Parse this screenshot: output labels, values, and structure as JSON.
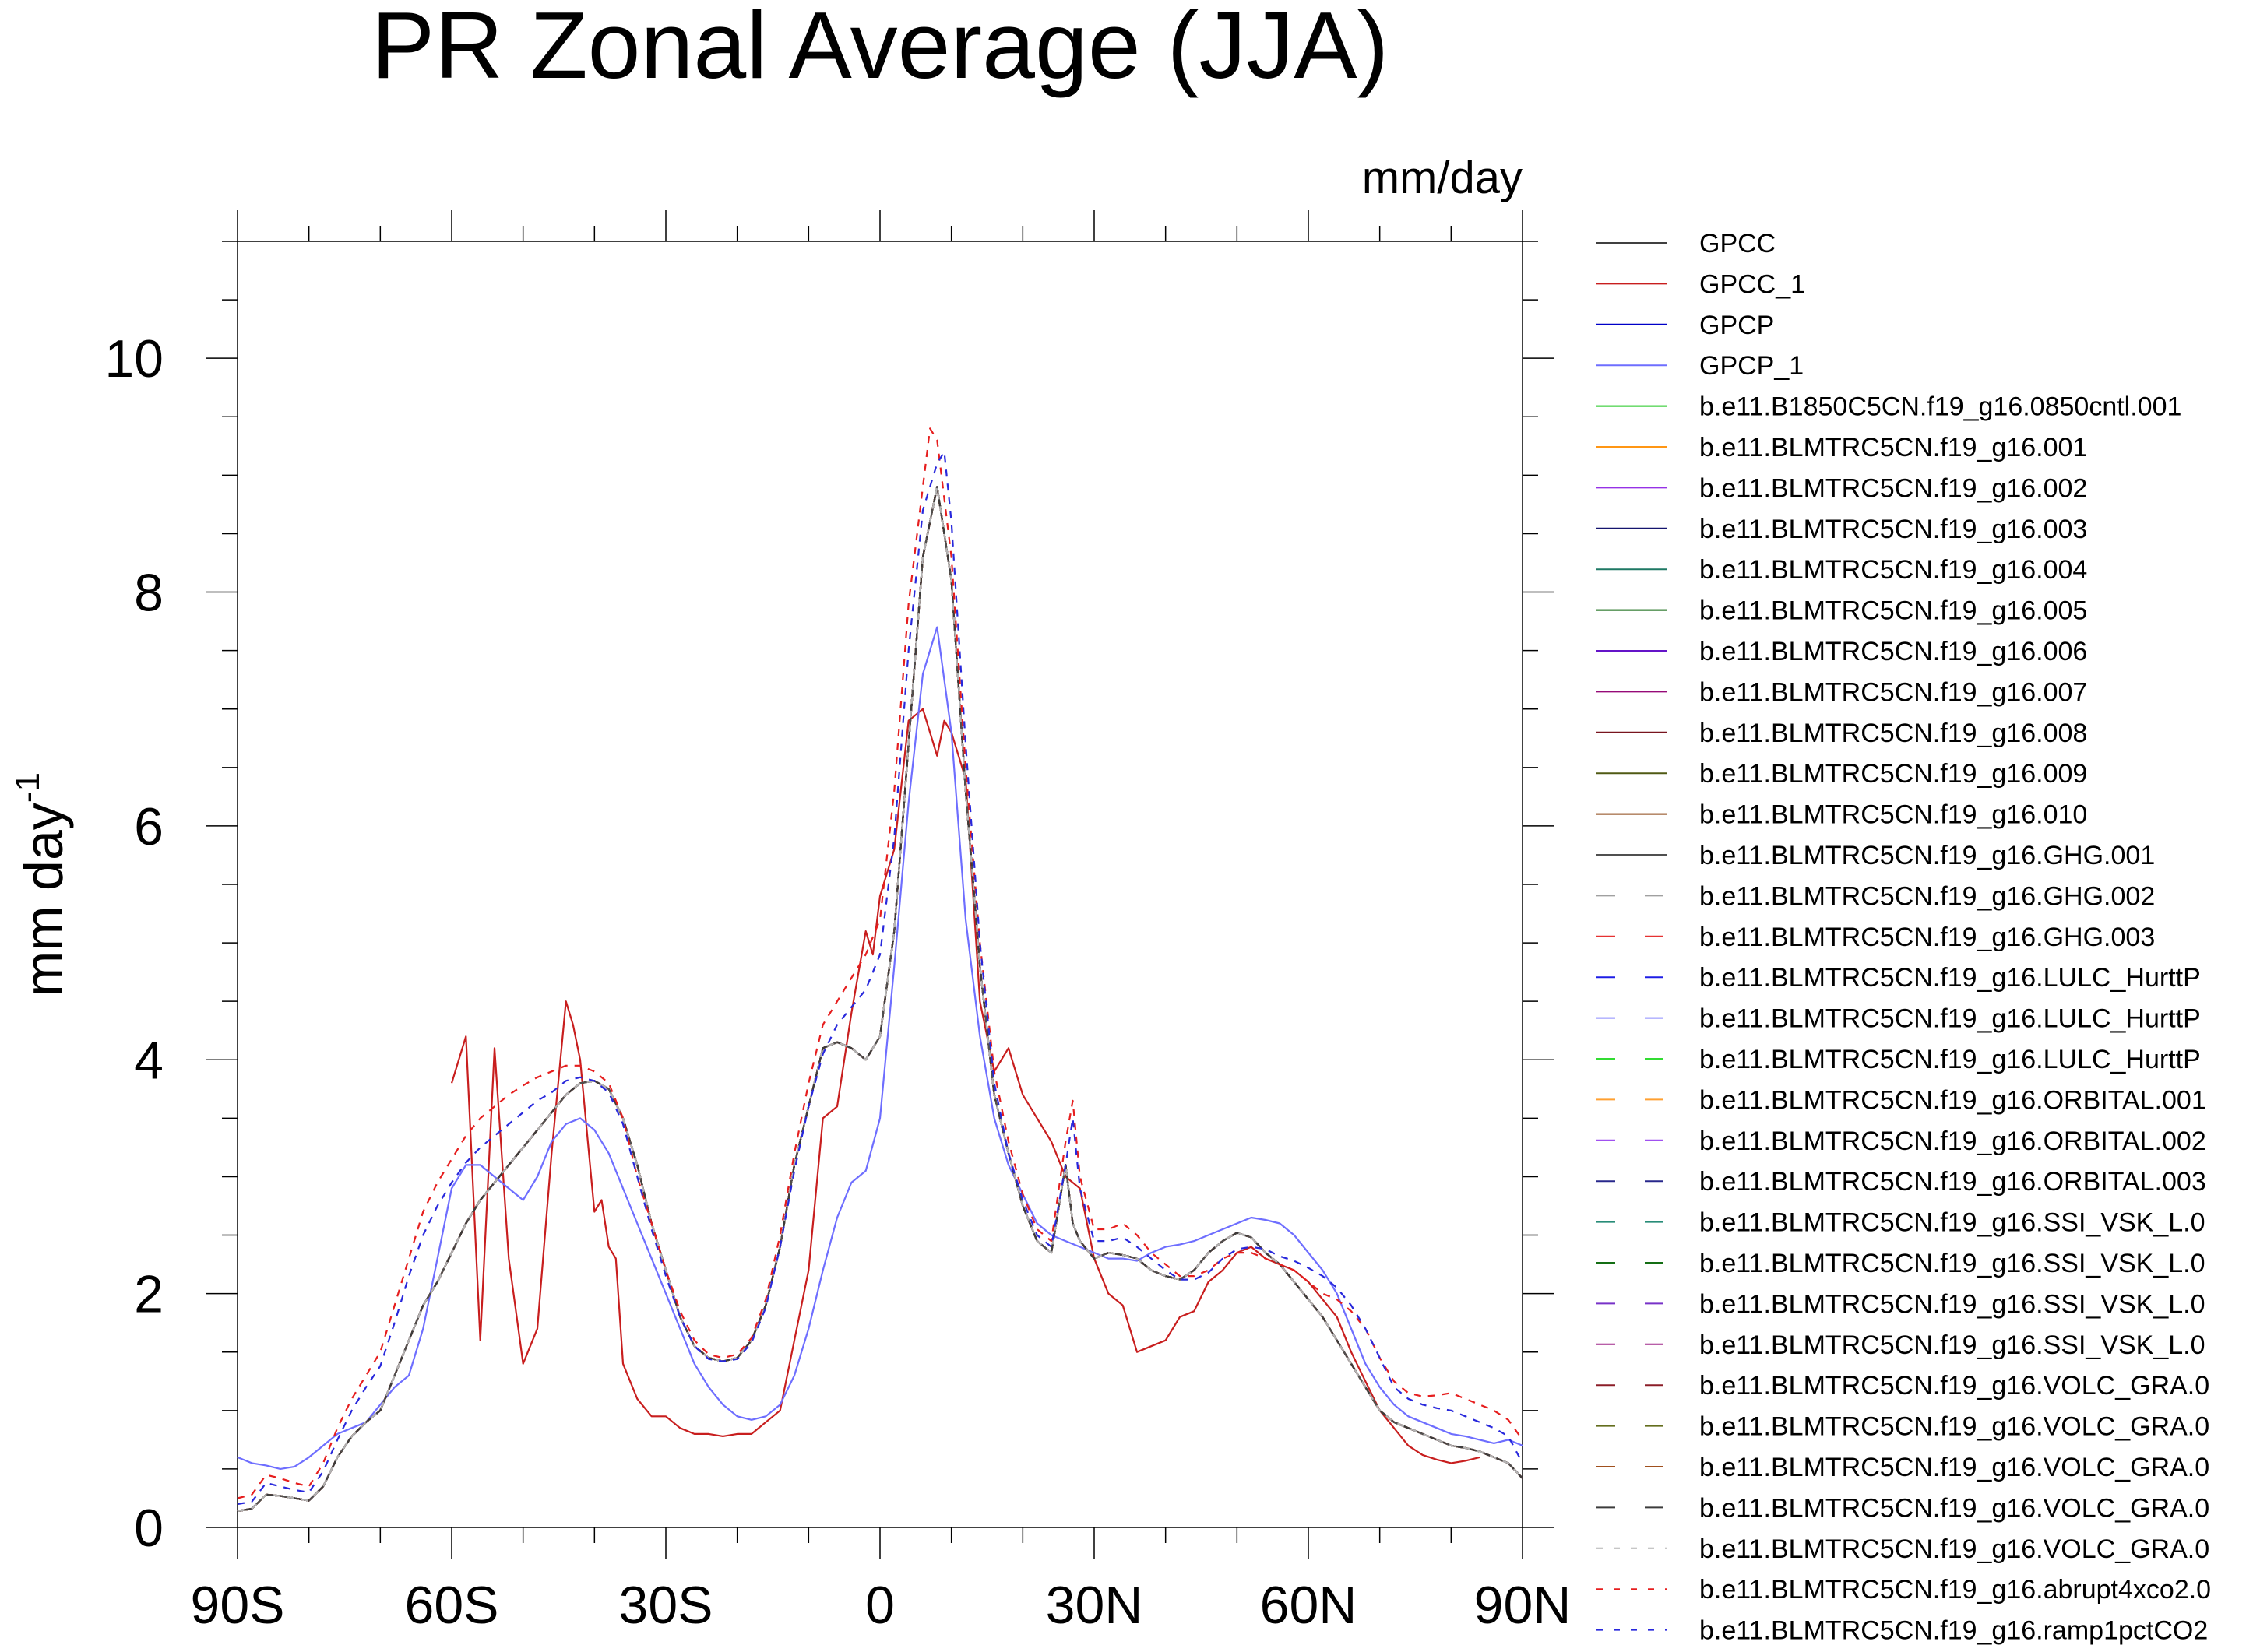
{
  "chart_data": {
    "type": "line",
    "title": "PR Zonal Average (JJA)",
    "units": "mm/day",
    "ylabel": "mm day",
    "ylabel_superscript": "-1",
    "xlabel": "",
    "xlim": [
      -90,
      90
    ],
    "ylim": [
      0,
      11
    ],
    "xticks": [
      {
        "value": -90,
        "label": "90S"
      },
      {
        "value": -60,
        "label": "60S"
      },
      {
        "value": -30,
        "label": "30S"
      },
      {
        "value": 0,
        "label": "0"
      },
      {
        "value": 30,
        "label": "30N"
      },
      {
        "value": 60,
        "label": "60N"
      },
      {
        "value": 90,
        "label": "90N"
      }
    ],
    "yticks": [
      {
        "value": 0,
        "label": "0"
      },
      {
        "value": 2,
        "label": "2"
      },
      {
        "value": 4,
        "label": "4"
      },
      {
        "value": 6,
        "label": "6"
      },
      {
        "value": 8,
        "label": "8"
      },
      {
        "value": 10,
        "label": "10"
      }
    ],
    "model_mean": {
      "x": [
        -90,
        -88,
        -86,
        -84,
        -82,
        -80,
        -78,
        -76,
        -74,
        -72,
        -70,
        -68,
        -66,
        -64,
        -62,
        -60,
        -58,
        -56,
        -54,
        -52,
        -50,
        -48,
        -46,
        -44,
        -42,
        -40,
        -38,
        -36,
        -34,
        -32,
        -30,
        -28,
        -26,
        -24,
        -22,
        -20,
        -18,
        -16,
        -14,
        -12,
        -10,
        -8,
        -6,
        -4,
        -2,
        0,
        2,
        4,
        6,
        8,
        10,
        12,
        14,
        16,
        18,
        20,
        22,
        24,
        26,
        27,
        28,
        30,
        32,
        34,
        36,
        38,
        40,
        42,
        44,
        46,
        48,
        50,
        52,
        54,
        56,
        58,
        60,
        62,
        64,
        66,
        68,
        70,
        72,
        74,
        76,
        78,
        80,
        82,
        84,
        86,
        88,
        90
      ],
      "y": [
        0.14,
        0.16,
        0.28,
        0.27,
        0.25,
        0.23,
        0.35,
        0.6,
        0.78,
        0.9,
        1.0,
        1.3,
        1.6,
        1.9,
        2.1,
        2.35,
        2.6,
        2.8,
        2.95,
        3.1,
        3.25,
        3.4,
        3.55,
        3.7,
        3.8,
        3.82,
        3.75,
        3.5,
        3.1,
        2.6,
        2.2,
        1.8,
        1.55,
        1.45,
        1.42,
        1.45,
        1.6,
        1.9,
        2.4,
        3.1,
        3.6,
        4.1,
        4.15,
        4.1,
        4.0,
        4.2,
        5.1,
        6.7,
        8.3,
        8.9,
        8.1,
        6.3,
        4.8,
        3.7,
        3.2,
        2.75,
        2.45,
        2.35,
        3.1,
        2.6,
        2.45,
        2.3,
        2.35,
        2.33,
        2.3,
        2.2,
        2.15,
        2.12,
        2.2,
        2.35,
        2.45,
        2.52,
        2.48,
        2.35,
        2.25,
        2.1,
        1.95,
        1.8,
        1.6,
        1.4,
        1.2,
        1.0,
        0.9,
        0.85,
        0.8,
        0.75,
        0.7,
        0.68,
        0.65,
        0.6,
        0.55,
        0.42
      ]
    },
    "series": [
      {
        "name": "GPCC",
        "color": "#404040",
        "dash": "solid",
        "source": "model_mean"
      },
      {
        "name": "GPCC_1",
        "color": "#c81e1e",
        "dash": "solid",
        "x": [
          -60,
          -58,
          -56,
          -54,
          -52,
          -50,
          -48,
          -46,
          -44,
          -43,
          -42,
          -40,
          -39,
          -38,
          -37,
          -36,
          -34,
          -32,
          -30,
          -28,
          -26,
          -24,
          -22,
          -20,
          -18,
          -16,
          -14,
          -12,
          -10,
          -8,
          -6,
          -4,
          -2,
          -1,
          0,
          2,
          4,
          6,
          8,
          9,
          10,
          12,
          14,
          16,
          18,
          20,
          22,
          24,
          26,
          28,
          30,
          32,
          34,
          36,
          38,
          40,
          42,
          44,
          46,
          48,
          50,
          52,
          54,
          56,
          58,
          60,
          62,
          64,
          66,
          68,
          70,
          72,
          74,
          76,
          78,
          80,
          82,
          84
        ],
        "y": [
          3.8,
          4.2,
          1.6,
          4.1,
          2.3,
          1.4,
          1.7,
          3.2,
          4.5,
          4.3,
          4.0,
          2.7,
          2.8,
          2.4,
          2.3,
          1.4,
          1.1,
          0.95,
          0.95,
          0.85,
          0.8,
          0.8,
          0.78,
          0.8,
          0.8,
          0.9,
          1.0,
          1.6,
          2.2,
          3.5,
          3.6,
          4.4,
          5.1,
          4.9,
          5.4,
          5.8,
          6.9,
          7.0,
          6.6,
          6.9,
          6.8,
          6.4,
          4.5,
          3.9,
          4.1,
          3.7,
          3.5,
          3.3,
          3.0,
          2.9,
          2.3,
          2.0,
          1.9,
          1.5,
          1.55,
          1.6,
          1.8,
          1.85,
          2.1,
          2.2,
          2.35,
          2.4,
          2.3,
          2.25,
          2.2,
          2.1,
          1.95,
          1.8,
          1.5,
          1.25,
          1.0,
          0.85,
          0.7,
          0.62,
          0.58,
          0.55,
          0.57,
          0.6
        ]
      },
      {
        "name": "GPCP",
        "color": "#0000c8",
        "dash": "solid",
        "source": "model_mean"
      },
      {
        "name": "GPCP_1",
        "color": "#6e6eff",
        "dash": "solid",
        "x": [
          -90,
          -88,
          -86,
          -84,
          -82,
          -80,
          -78,
          -76,
          -74,
          -72,
          -70,
          -68,
          -66,
          -64,
          -62,
          -60,
          -58,
          -56,
          -54,
          -52,
          -50,
          -48,
          -46,
          -44,
          -42,
          -40,
          -38,
          -36,
          -34,
          -32,
          -30,
          -28,
          -26,
          -24,
          -22,
          -20,
          -18,
          -16,
          -14,
          -12,
          -10,
          -8,
          -6,
          -4,
          -2,
          0,
          2,
          4,
          6,
          8,
          10,
          12,
          14,
          16,
          18,
          20,
          22,
          24,
          26,
          28,
          30,
          32,
          34,
          36,
          38,
          40,
          42,
          44,
          46,
          48,
          50,
          52,
          54,
          56,
          58,
          60,
          62,
          64,
          66,
          68,
          70,
          72,
          74,
          76,
          78,
          80,
          82,
          84,
          86,
          88,
          90
        ],
        "y": [
          0.6,
          0.55,
          0.53,
          0.5,
          0.52,
          0.6,
          0.7,
          0.8,
          0.85,
          0.9,
          1.05,
          1.2,
          1.3,
          1.7,
          2.3,
          2.9,
          3.1,
          3.1,
          3.0,
          2.9,
          2.8,
          3.0,
          3.3,
          3.45,
          3.5,
          3.4,
          3.2,
          2.9,
          2.6,
          2.3,
          2.0,
          1.7,
          1.4,
          1.2,
          1.05,
          0.95,
          0.92,
          0.95,
          1.05,
          1.3,
          1.7,
          2.2,
          2.65,
          2.95,
          3.05,
          3.5,
          4.8,
          6.2,
          7.3,
          7.7,
          6.8,
          5.2,
          4.2,
          3.5,
          3.1,
          2.85,
          2.6,
          2.5,
          2.45,
          2.4,
          2.35,
          2.3,
          2.3,
          2.28,
          2.35,
          2.4,
          2.42,
          2.45,
          2.5,
          2.55,
          2.6,
          2.65,
          2.63,
          2.6,
          2.5,
          2.35,
          2.2,
          2.0,
          1.7,
          1.4,
          1.2,
          1.05,
          0.95,
          0.9,
          0.85,
          0.8,
          0.78,
          0.75,
          0.72,
          0.75,
          0.7
        ]
      },
      {
        "name": "b.e11.B1850C5CN.f19_g16.0850cntl.001",
        "color": "#1ec81e",
        "dash": "solid",
        "source": "model_mean"
      },
      {
        "name": "b.e11.BLMTRC5CN.f19_g16.001",
        "color": "#ff9614",
        "dash": "solid",
        "source": "model_mean"
      },
      {
        "name": "b.e11.BLMTRC5CN.f19_g16.002",
        "color": "#9632e6",
        "dash": "solid",
        "source": "model_mean"
      },
      {
        "name": "b.e11.BLMTRC5CN.f19_g16.003",
        "color": "#14146e",
        "dash": "solid",
        "source": "model_mean"
      },
      {
        "name": "b.e11.BLMTRC5CN.f19_g16.004",
        "color": "#1e7864",
        "dash": "solid",
        "source": "model_mean"
      },
      {
        "name": "b.e11.BLMTRC5CN.f19_g16.005",
        "color": "#0a640a",
        "dash": "solid",
        "source": "model_mean"
      },
      {
        "name": "b.e11.BLMTRC5CN.f19_g16.006",
        "color": "#6414c8",
        "dash": "solid",
        "source": "model_mean"
      },
      {
        "name": "b.e11.BLMTRC5CN.f19_g16.007",
        "color": "#960a78",
        "dash": "solid",
        "source": "model_mean"
      },
      {
        "name": "b.e11.BLMTRC5CN.f19_g16.008",
        "color": "#78141e",
        "dash": "solid",
        "source": "model_mean"
      },
      {
        "name": "b.e11.BLMTRC5CN.f19_g16.009",
        "color": "#505a14",
        "dash": "solid",
        "source": "model_mean"
      },
      {
        "name": "b.e11.BLMTRC5CN.f19_g16.010",
        "color": "#8c4614",
        "dash": "solid",
        "source": "model_mean"
      },
      {
        "name": "b.e11.BLMTRC5CN.f19_g16.GHG.001",
        "color": "#505050",
        "dash": "solid",
        "source": "model_mean"
      },
      {
        "name": "b.e11.BLMTRC5CN.f19_g16.GHG.002",
        "color": "#a0a0a0",
        "dash": "long",
        "source": "model_mean"
      },
      {
        "name": "b.e11.BLMTRC5CN.f19_g16.GHG.003",
        "color": "#e63232",
        "dash": "long",
        "source": "model_mean"
      },
      {
        "name": "b.e11.BLMTRC5CN.f19_g16.LULC_HurttP",
        "color": "#1e1ee6",
        "dash": "long",
        "source": "model_mean"
      },
      {
        "name": "b.e11.BLMTRC5CN.f19_g16.LULC_HurttP",
        "color": "#8c8cff",
        "dash": "long",
        "source": "model_mean"
      },
      {
        "name": "b.e11.BLMTRC5CN.f19_g16.LULC_HurttP",
        "color": "#32dc32",
        "dash": "long",
        "source": "model_mean"
      },
      {
        "name": "b.e11.BLMTRC5CN.f19_g16.ORBITAL.001",
        "color": "#ffa032",
        "dash": "long",
        "source": "model_mean"
      },
      {
        "name": "b.e11.BLMTRC5CN.f19_g16.ORBITAL.002",
        "color": "#a050f0",
        "dash": "long",
        "source": "model_mean"
      },
      {
        "name": "b.e11.BLMTRC5CN.f19_g16.ORBITAL.003",
        "color": "#28288c",
        "dash": "long",
        "source": "model_mean"
      },
      {
        "name": "b.e11.BLMTRC5CN.f19_g16.SSI_VSK_L.0",
        "color": "#288c78",
        "dash": "long",
        "source": "model_mean"
      },
      {
        "name": "b.e11.BLMTRC5CN.f19_g16.SSI_VSK_L.0",
        "color": "#146e14",
        "dash": "long",
        "source": "model_mean"
      },
      {
        "name": "b.e11.BLMTRC5CN.f19_g16.SSI_VSK_L.0",
        "color": "#7832c8",
        "dash": "long",
        "source": "model_mean"
      },
      {
        "name": "b.e11.BLMTRC5CN.f19_g16.SSI_VSK_L.0",
        "color": "#a0288c",
        "dash": "long",
        "source": "model_mean"
      },
      {
        "name": "b.e11.BLMTRC5CN.f19_g16.VOLC_GRA.0",
        "color": "#8c1e28",
        "dash": "long",
        "source": "model_mean"
      },
      {
        "name": "b.e11.BLMTRC5CN.f19_g16.VOLC_GRA.0",
        "color": "#646e1e",
        "dash": "long",
        "source": "model_mean"
      },
      {
        "name": "b.e11.BLMTRC5CN.f19_g16.VOLC_GRA.0",
        "color": "#a0501e",
        "dash": "long",
        "source": "model_mean"
      },
      {
        "name": "b.e11.BLMTRC5CN.f19_g16.VOLC_GRA.0",
        "color": "#3c3c3c",
        "dash": "long",
        "source": "model_mean"
      },
      {
        "name": "b.e11.BLMTRC5CN.f19_g16.VOLC_GRA.0",
        "color": "#b4b4b4",
        "dash": "short",
        "source": "model_mean"
      },
      {
        "name": "b.e11.BLMTRC5CN.f19_g16.abrupt4xco2.0",
        "color": "#e61e1e",
        "dash": "short",
        "x": [
          -90,
          -88,
          -86,
          -84,
          -82,
          -80,
          -78,
          -76,
          -74,
          -72,
          -70,
          -68,
          -66,
          -64,
          -62,
          -60,
          -58,
          -56,
          -54,
          -52,
          -50,
          -48,
          -46,
          -44,
          -42,
          -40,
          -38,
          -36,
          -34,
          -32,
          -30,
          -28,
          -26,
          -24,
          -22,
          -20,
          -18,
          -16,
          -14,
          -12,
          -10,
          -8,
          -6,
          -4,
          -2,
          0,
          2,
          4,
          6,
          7,
          8,
          10,
          12,
          14,
          16,
          18,
          20,
          22,
          24,
          26,
          27,
          28,
          30,
          32,
          34,
          36,
          38,
          40,
          42,
          44,
          46,
          48,
          50,
          52,
          54,
          56,
          58,
          60,
          62,
          64,
          66,
          68,
          70,
          72,
          74,
          76,
          78,
          80,
          82,
          84,
          86,
          88,
          90
        ],
        "y": [
          0.25,
          0.28,
          0.45,
          0.42,
          0.38,
          0.35,
          0.55,
          0.85,
          1.1,
          1.3,
          1.5,
          1.9,
          2.3,
          2.7,
          2.95,
          3.15,
          3.35,
          3.5,
          3.6,
          3.7,
          3.78,
          3.85,
          3.9,
          3.95,
          3.95,
          3.9,
          3.8,
          3.5,
          3.0,
          2.6,
          2.2,
          1.85,
          1.6,
          1.48,
          1.45,
          1.48,
          1.62,
          1.95,
          2.5,
          3.2,
          3.8,
          4.3,
          4.5,
          4.7,
          4.9,
          5.2,
          6.3,
          7.9,
          8.9,
          9.4,
          9.3,
          8.3,
          6.5,
          5.0,
          3.9,
          3.3,
          2.85,
          2.55,
          2.45,
          3.3,
          3.65,
          3.0,
          2.55,
          2.55,
          2.6,
          2.5,
          2.35,
          2.25,
          2.15,
          2.15,
          2.2,
          2.3,
          2.35,
          2.35,
          2.3,
          2.25,
          2.2,
          2.1,
          2.0,
          1.95,
          1.85,
          1.7,
          1.45,
          1.25,
          1.15,
          1.12,
          1.13,
          1.15,
          1.1,
          1.05,
          1.0,
          0.92,
          0.75
        ]
      },
      {
        "name": "b.e11.BLMTRC5CN.f19_g16.ramp1pctCO2",
        "color": "#2828dc",
        "dash": "short",
        "x": [
          -90,
          -88,
          -86,
          -84,
          -82,
          -80,
          -78,
          -76,
          -74,
          -72,
          -70,
          -68,
          -66,
          -64,
          -62,
          -60,
          -58,
          -56,
          -54,
          -52,
          -50,
          -48,
          -46,
          -44,
          -42,
          -40,
          -38,
          -36,
          -34,
          -32,
          -30,
          -28,
          -26,
          -24,
          -22,
          -20,
          -18,
          -16,
          -14,
          -12,
          -10,
          -8,
          -6,
          -4,
          -2,
          0,
          2,
          4,
          6,
          8,
          9,
          10,
          12,
          14,
          16,
          18,
          20,
          22,
          24,
          26,
          27,
          28,
          30,
          32,
          34,
          36,
          38,
          40,
          42,
          44,
          46,
          48,
          50,
          52,
          54,
          56,
          58,
          60,
          62,
          64,
          66,
          68,
          70,
          72,
          74,
          76,
          78,
          80,
          82,
          84,
          86,
          88,
          90
        ],
        "y": [
          0.2,
          0.22,
          0.38,
          0.35,
          0.32,
          0.3,
          0.48,
          0.75,
          1.0,
          1.2,
          1.38,
          1.75,
          2.15,
          2.5,
          2.75,
          2.95,
          3.12,
          3.25,
          3.35,
          3.45,
          3.55,
          3.65,
          3.72,
          3.82,
          3.85,
          3.82,
          3.72,
          3.45,
          3.0,
          2.55,
          2.15,
          1.8,
          1.55,
          1.44,
          1.42,
          1.44,
          1.58,
          1.88,
          2.4,
          3.05,
          3.6,
          4.05,
          4.3,
          4.45,
          4.6,
          4.9,
          5.9,
          7.5,
          8.7,
          9.1,
          9.2,
          8.6,
          6.7,
          5.0,
          3.8,
          3.2,
          2.8,
          2.5,
          2.4,
          3.1,
          3.5,
          2.9,
          2.45,
          2.45,
          2.48,
          2.4,
          2.3,
          2.2,
          2.12,
          2.12,
          2.18,
          2.3,
          2.38,
          2.4,
          2.38,
          2.32,
          2.28,
          2.22,
          2.15,
          2.05,
          1.9,
          1.7,
          1.45,
          1.2,
          1.1,
          1.05,
          1.02,
          1.0,
          0.95,
          0.9,
          0.85,
          0.78,
          0.55
        ]
      }
    ]
  }
}
